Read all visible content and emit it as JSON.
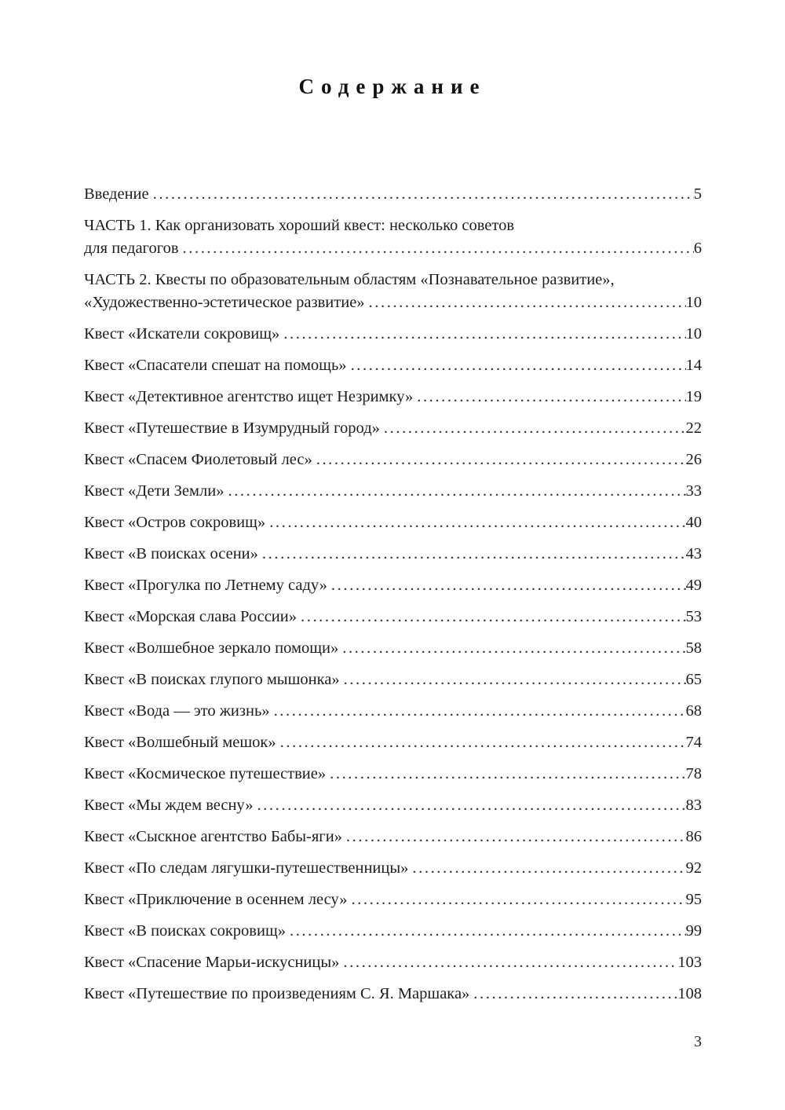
{
  "page": {
    "title": "Содержание",
    "page_number": "3",
    "toc": {
      "entries": [
        {
          "pre": "",
          "label": "Введение",
          "page": "5"
        },
        {
          "pre": "ЧАСТЬ 1. Как организовать хороший квест: несколько советов",
          "label": "для педагогов",
          "page": "6"
        },
        {
          "pre": "ЧАСТЬ 2. Квесты по образовательным областям «Познавательное развитие»,",
          "label": "«Художественно-эстетическое развитие»",
          "page": "10"
        },
        {
          "pre": "",
          "label": "Квест «Искатели сокровищ»",
          "page": "10"
        },
        {
          "pre": "",
          "label": "Квест «Спасатели спешат на помощь»",
          "page": "14"
        },
        {
          "pre": "",
          "label": "Квест «Детективное агентство ищет Незримку»",
          "page": "19"
        },
        {
          "pre": "",
          "label": "Квест «Путешествие в Изумрудный город»",
          "page": "22"
        },
        {
          "pre": "",
          "label": "Квест «Спасем Фиолетовый лес»",
          "page": "26"
        },
        {
          "pre": "",
          "label": "Квест «Дети Земли»",
          "page": "33"
        },
        {
          "pre": "",
          "label": "Квест «Остров сокровищ»",
          "page": "40"
        },
        {
          "pre": "",
          "label": "Квест «В поисках осени»",
          "page": "43"
        },
        {
          "pre": "",
          "label": "Квест «Прогулка по Летнему саду»",
          "page": "49"
        },
        {
          "pre": "",
          "label": "Квест «Морская слава России»",
          "page": "53"
        },
        {
          "pre": "",
          "label": "Квест «Волшебное зеркало помощи»",
          "page": "58"
        },
        {
          "pre": "",
          "label": "Квест «В поисках глупого мышонка»",
          "page": "65"
        },
        {
          "pre": "",
          "label": "Квест «Вода — это жизнь»",
          "page": "68"
        },
        {
          "pre": "",
          "label": "Квест «Волшебный мешок»",
          "page": "74"
        },
        {
          "pre": "",
          "label": "Квест «Космическое путешествие»",
          "page": "78"
        },
        {
          "pre": "",
          "label": "Квест «Мы ждем весну»",
          "page": "83"
        },
        {
          "pre": "",
          "label": "Квест «Сыскное агентство Бабы-яги»",
          "page": "86"
        },
        {
          "pre": "",
          "label": "Квест «По следам лягушки-путешественницы»",
          "page": "92"
        },
        {
          "pre": "",
          "label": "Квест «Приключение в осеннем лесу»",
          "page": "95"
        },
        {
          "pre": "",
          "label": "Квест «В поисках сокровищ»",
          "page": "99"
        },
        {
          "pre": "",
          "label": "Квест «Спасение Марьи-искусницы»",
          "page": "103"
        },
        {
          "pre": "",
          "label": "Квест «Путешествие по произведениям С. Я. Маршака»",
          "page": "108"
        }
      ]
    }
  }
}
